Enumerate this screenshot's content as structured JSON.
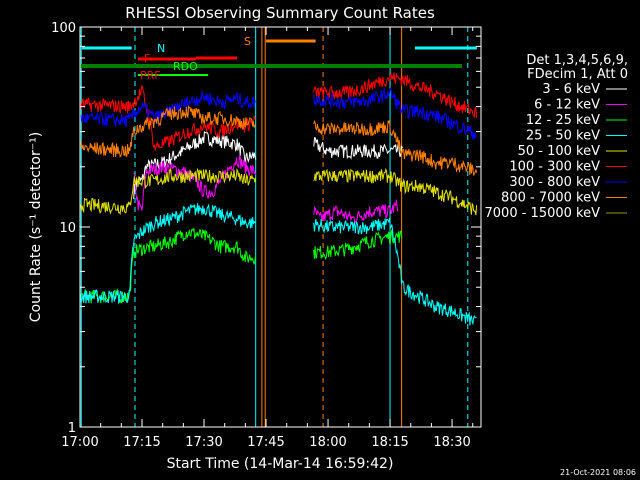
{
  "chart_data": {
    "type": "line",
    "title": "RHESSI Observing Summary Count Rates",
    "xlabel": "Start Time (14-Mar-14 16:59:42)",
    "ylabel": "Count Rate (s⁻¹ detector⁻¹)",
    "yscale": "log",
    "ylim": [
      1,
      100
    ],
    "xlim_minutes": [
      0,
      97
    ],
    "x_ticks": [
      {
        "label": "17:00",
        "min": 0
      },
      {
        "label": "17:15",
        "min": 15
      },
      {
        "label": "17:30",
        "min": 30
      },
      {
        "label": "17:45",
        "min": 45
      },
      {
        "label": "18:00",
        "min": 60
      },
      {
        "label": "18:15",
        "min": 75
      },
      {
        "label": "18:30",
        "min": 90
      }
    ],
    "y_ticks": [
      {
        "label": "1",
        "value": 1
      },
      {
        "label": "10",
        "value": 10
      },
      {
        "label": "100",
        "value": 100
      }
    ],
    "legend_header": [
      "Det 1,3,4,5,6,9,",
      "FDecim 1, Att 0"
    ],
    "legend_placement": "right",
    "timestamp": "21-Oct-2021 08:06",
    "series": [
      {
        "name": "3 - 6 keV",
        "color": "#ffffff",
        "points": [
          [
            13,
            15
          ],
          [
            14,
            17
          ],
          [
            15,
            17
          ],
          [
            16,
            20
          ],
          [
            20,
            21
          ],
          [
            25,
            24
          ],
          [
            30,
            28
          ],
          [
            34,
            27
          ],
          [
            38,
            26
          ],
          [
            40,
            22
          ],
          [
            55,
            27
          ],
          [
            60,
            24
          ],
          [
            65,
            24
          ],
          [
            70,
            24
          ],
          [
            75,
            24
          ],
          [
            78,
            24
          ]
        ]
      },
      {
        "name": "6 - 12 keV",
        "color": "#ff00ff",
        "points": [
          [
            13,
            18
          ],
          [
            14,
            13
          ],
          [
            15,
            12
          ],
          [
            16,
            19
          ],
          [
            20,
            20
          ],
          [
            25,
            19
          ],
          [
            28,
            17
          ],
          [
            30,
            15
          ],
          [
            32,
            15
          ],
          [
            34,
            17
          ],
          [
            38,
            22
          ],
          [
            40,
            20
          ],
          [
            55,
            13
          ],
          [
            58,
            11
          ],
          [
            62,
            12
          ],
          [
            66,
            11
          ],
          [
            70,
            12
          ],
          [
            75,
            12
          ],
          [
            77,
            13
          ]
        ]
      },
      {
        "name": "12 - 25 keV",
        "color": "#00ff00",
        "points": [
          [
            0,
            4.5
          ],
          [
            12,
            4.5
          ],
          [
            13,
            7.5
          ],
          [
            15,
            7.8
          ],
          [
            18,
            8.0
          ],
          [
            22,
            8.5
          ],
          [
            26,
            9.5
          ],
          [
            30,
            9.0
          ],
          [
            34,
            8.0
          ],
          [
            38,
            8.0
          ],
          [
            40,
            7.0
          ],
          [
            55,
            7.5
          ],
          [
            60,
            7.5
          ],
          [
            65,
            7.8
          ],
          [
            70,
            8.5
          ],
          [
            75,
            9.0
          ],
          [
            78,
            9.0
          ]
        ]
      },
      {
        "name": "25 - 50 keV",
        "color": "#00ffff",
        "points": [
          [
            0,
            4.5
          ],
          [
            12,
            4.5
          ],
          [
            13,
            8.5
          ],
          [
            15,
            9.5
          ],
          [
            18,
            10.5
          ],
          [
            22,
            11
          ],
          [
            26,
            12
          ],
          [
            30,
            12.5
          ],
          [
            34,
            11.5
          ],
          [
            38,
            11.0
          ],
          [
            40,
            10.5
          ],
          [
            55,
            10.5
          ],
          [
            60,
            10.0
          ],
          [
            65,
            10.0
          ],
          [
            70,
            10.0
          ],
          [
            75,
            10.5
          ],
          [
            78,
            5.0
          ],
          [
            82,
            4.5
          ],
          [
            86,
            4.0
          ],
          [
            90,
            3.8
          ],
          [
            96,
            3.3
          ]
        ]
      },
      {
        "name": "50 - 100 keV",
        "color": "#e0e000",
        "points": [
          [
            0,
            13
          ],
          [
            12,
            12.5
          ],
          [
            13,
            17
          ],
          [
            15,
            17
          ],
          [
            18,
            17
          ],
          [
            22,
            18
          ],
          [
            26,
            18
          ],
          [
            30,
            18
          ],
          [
            34,
            18
          ],
          [
            38,
            18
          ],
          [
            40,
            17
          ],
          [
            55,
            18
          ],
          [
            60,
            18
          ],
          [
            65,
            18
          ],
          [
            70,
            18
          ],
          [
            75,
            18
          ],
          [
            78,
            16
          ],
          [
            82,
            16
          ],
          [
            86,
            15
          ],
          [
            90,
            14
          ],
          [
            96,
            12
          ]
        ]
      },
      {
        "name": "100 - 300 keV",
        "color": "#ff0000",
        "points": [
          [
            0,
            41
          ],
          [
            12,
            40
          ],
          [
            13,
            42
          ],
          [
            15,
            48
          ],
          [
            18,
            25
          ],
          [
            22,
            27
          ],
          [
            26,
            30
          ],
          [
            30,
            32
          ],
          [
            34,
            30
          ],
          [
            38,
            33
          ],
          [
            40,
            32
          ],
          [
            55,
            47
          ],
          [
            60,
            47
          ],
          [
            65,
            47
          ],
          [
            70,
            51
          ],
          [
            75,
            56
          ],
          [
            78,
            55
          ],
          [
            82,
            50
          ],
          [
            86,
            47
          ],
          [
            90,
            42
          ],
          [
            96,
            37
          ]
        ]
      },
      {
        "name": "300 - 800 keV",
        "color": "#0000ff",
        "points": [
          [
            0,
            35
          ],
          [
            12,
            34
          ],
          [
            13,
            37
          ],
          [
            15,
            40
          ],
          [
            18,
            35
          ],
          [
            22,
            38
          ],
          [
            26,
            42
          ],
          [
            30,
            45
          ],
          [
            34,
            42
          ],
          [
            38,
            44
          ],
          [
            40,
            42
          ],
          [
            55,
            44
          ],
          [
            60,
            43
          ],
          [
            65,
            42
          ],
          [
            70,
            43
          ],
          [
            75,
            47
          ],
          [
            78,
            38
          ],
          [
            82,
            38
          ],
          [
            86,
            36
          ],
          [
            90,
            33
          ],
          [
            96,
            29
          ]
        ]
      },
      {
        "name": "800 - 7000 keV",
        "color": "#ff8000",
        "points": [
          [
            0,
            25
          ],
          [
            12,
            24
          ],
          [
            13,
            30
          ],
          [
            15,
            32
          ],
          [
            18,
            34
          ],
          [
            22,
            37
          ],
          [
            26,
            38
          ],
          [
            30,
            35
          ],
          [
            34,
            35
          ],
          [
            38,
            34
          ],
          [
            40,
            33
          ],
          [
            55,
            32
          ],
          [
            60,
            31
          ],
          [
            65,
            31
          ],
          [
            70,
            31
          ],
          [
            75,
            32
          ],
          [
            78,
            23
          ],
          [
            82,
            23
          ],
          [
            86,
            21
          ],
          [
            90,
            21
          ],
          [
            96,
            19
          ]
        ]
      },
      {
        "name": "7000 - 15000 keV",
        "color": "#999900",
        "points": []
      }
    ],
    "annotations": [
      {
        "label": "N",
        "color": "#00ffff"
      },
      {
        "label": "F",
        "color": "#ff0000"
      },
      {
        "label": "RDO",
        "color": "#00ff00"
      },
      {
        "label": "PRF",
        "color": "#ff0000"
      },
      {
        "label": "S",
        "color": "#ff8000"
      }
    ]
  }
}
